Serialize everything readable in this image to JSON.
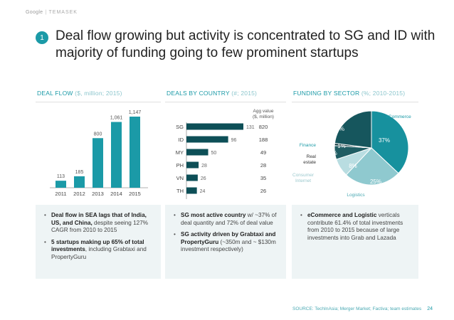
{
  "brand": {
    "left": "Google",
    "right": "TEMASEK"
  },
  "slide_number": "1",
  "title": "Deal flow growing but activity is concentrated to SG and ID with majority of funding going to few prominent startups",
  "colors": {
    "accent": "#1b9aa7",
    "dark": "#0d4f57",
    "light": "#a9d3d8"
  },
  "panels": {
    "deal_flow": {
      "head": "DEAL FLOW",
      "unit": "($, million; 2015)",
      "bullets": [
        {
          "bold": "Deal flow in SEA lags that of India, US, and China,",
          "text": " despite seeing 127% CAGR from 2010 to 2015"
        },
        {
          "bold": "5 startups making up 65% of total investments",
          "text": ", including Grabtaxi and PropertyGuru"
        }
      ]
    },
    "deals_by_country": {
      "head": "DEALS BY COUNTRY",
      "unit": "(#; 2015)",
      "agg_label_1": "Agg value",
      "agg_label_2": "($, million)",
      "bullets": [
        {
          "bold": "SG most active country",
          "text": " w/ ~37% of deal quantity and 72% of deal value"
        },
        {
          "bold": "SG activity driven by Grabtaxi and PropertyGuru",
          "text": " (~350m and ~ $130m investment respectively)"
        }
      ]
    },
    "funding_by_sector": {
      "head": "FUNDING BY SECTOR",
      "unit": "(%; 2010-2015)",
      "bullets": [
        {
          "bold": "eCommerce and Logistic",
          "text": " verticals contribute 61.4% of total investments from 2010 to 2015 because of large investments into Grab and Lazada"
        }
      ]
    }
  },
  "chart_data": [
    {
      "type": "bar",
      "categories": [
        "2011",
        "2012",
        "2013",
        "2014",
        "2015"
      ],
      "values": [
        113,
        185,
        800,
        1061,
        1147
      ],
      "value_labels": [
        "113",
        "185",
        "800",
        "1,061",
        "1,147"
      ],
      "ylim": [
        0,
        1147
      ],
      "color": "#1b9aa7"
    },
    {
      "type": "bar",
      "orientation": "horizontal",
      "categories": [
        "SG",
        "ID",
        "MY",
        "PH",
        "VN",
        "TH"
      ],
      "values": [
        131,
        96,
        50,
        28,
        26,
        24
      ],
      "agg_values": [
        "820",
        "188",
        "49",
        "28",
        "35",
        "26"
      ],
      "xlim": [
        0,
        131
      ],
      "color": "#0d4f57"
    },
    {
      "type": "pie",
      "slices": [
        {
          "label": "eCommerce",
          "value": 37,
          "value_label": "37%",
          "color": "#17919e"
        },
        {
          "label": "Logistics",
          "value": 25,
          "value_label": "25%",
          "color": "#8fc9cf"
        },
        {
          "label": "Consumer Internet",
          "value": 8,
          "value_label": "8%",
          "color": "#b9dde1"
        },
        {
          "label": "Real estate",
          "value": 6,
          "value_label": "6%",
          "color": "#1f5d63"
        },
        {
          "label": "Finance",
          "value": 1,
          "value_label": "1%",
          "color": "#0b3338"
        },
        {
          "label": "",
          "value": 23,
          "value_label": "23%",
          "color": "#16565d"
        }
      ]
    }
  ],
  "footer": {
    "source": "SOURCE: TechInAsia; Merger Market; Factiva; team estimates",
    "page": "24"
  }
}
